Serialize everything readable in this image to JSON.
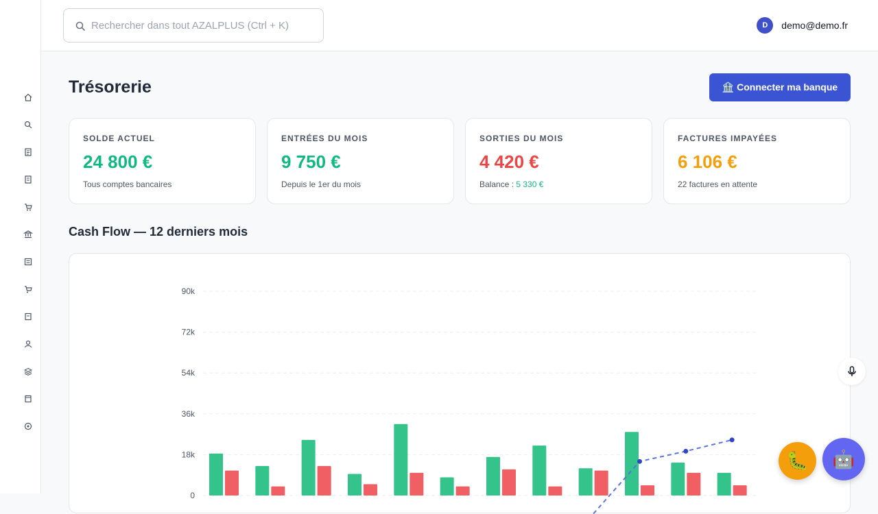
{
  "search": {
    "placeholder": "Rechercher dans tout AZALPLUS (Ctrl + K)"
  },
  "user": {
    "initial": "D",
    "email": "demo@demo.fr"
  },
  "page": {
    "title": "Trésorerie",
    "connect_label": "🏦 Connecter ma banque"
  },
  "sidebar": {
    "icons": [
      "home-icon",
      "search-icon",
      "document-icon",
      "invoice-icon",
      "cart-icon",
      "bank-icon",
      "list-icon",
      "basket-icon",
      "file-icon",
      "user-icon",
      "layers-icon",
      "folder-icon",
      "settings-icon"
    ]
  },
  "cards": [
    {
      "label": "SOLDE ACTUEL",
      "value": "24 800 €",
      "sub": "Tous comptes bancaires",
      "color": "#10b981"
    },
    {
      "label": "ENTRÉES DU MOIS",
      "value": "9 750 €",
      "sub": "Depuis le 1er du mois",
      "color": "#10b981"
    },
    {
      "label": "SORTIES DU MOIS",
      "value": "4 420 €",
      "sub_prefix": "Balance : ",
      "sub_value": "5 330 €",
      "color": "#ef4444"
    },
    {
      "label": "FACTURES IMPAYÉES",
      "value": "6 106 €",
      "sub": "22 factures en attente",
      "color": "#f59e0b"
    }
  ],
  "chart_title": "Cash Flow — 12 derniers mois",
  "chart_data": {
    "type": "bar",
    "y_ticks": [
      "90k",
      "72k",
      "54k",
      "36k",
      "18k",
      "0"
    ],
    "ylim": [
      0,
      90000
    ],
    "grid": true,
    "series": [
      {
        "values": [
          18500,
          13000,
          24500,
          9500,
          31500,
          8000,
          17000,
          22000,
          12000,
          28000,
          14500,
          10000
        ],
        "color": "#34c48b"
      },
      {
        "values": [
          11000,
          4000,
          13000,
          5000,
          10000,
          4000,
          11500,
          4000,
          11000,
          4500,
          10000,
          4500
        ],
        "color": "#ef5f63"
      },
      {
        "values": [
          null,
          null,
          null,
          null,
          null,
          null,
          null,
          null,
          -8000,
          15000,
          19500,
          24500
        ],
        "color": "#5b73de",
        "dashed": true
      }
    ]
  },
  "fab": {
    "bug": "🐛",
    "bot": "🤖"
  }
}
